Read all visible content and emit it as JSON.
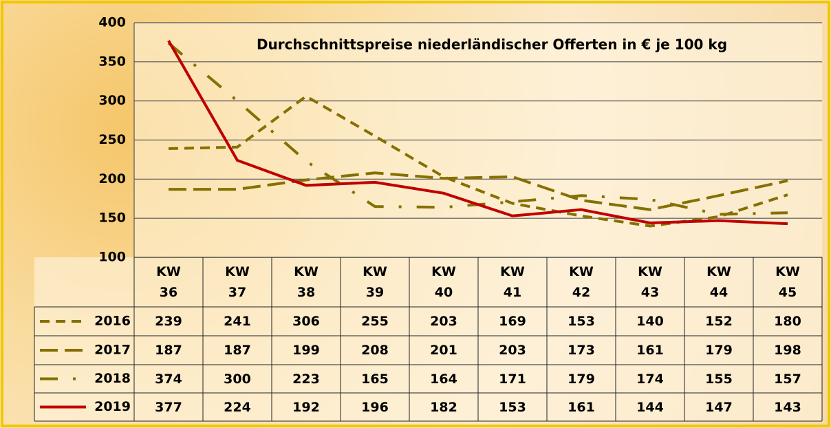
{
  "chart_data": {
    "type": "line",
    "title": "Durchschnittspreise niederländischer Offerten in € je 100 kg",
    "categories": [
      "KW 36",
      "KW 37",
      "KW 38",
      "KW 39",
      "KW 40",
      "KW 41",
      "KW 42",
      "KW 43",
      "KW 44",
      "KW 45"
    ],
    "series": [
      {
        "name": "2016",
        "color": "#857000",
        "dash": "short",
        "values": [
          239,
          241,
          306,
          255,
          203,
          169,
          153,
          140,
          152,
          180
        ]
      },
      {
        "name": "2017",
        "color": "#857000",
        "dash": "long",
        "values": [
          187,
          187,
          199,
          208,
          201,
          203,
          173,
          161,
          179,
          198
        ]
      },
      {
        "name": "2018",
        "color": "#857000",
        "dash": "dashdot",
        "values": [
          374,
          300,
          223,
          165,
          164,
          171,
          179,
          174,
          155,
          157
        ]
      },
      {
        "name": "2019",
        "color": "#c00000",
        "dash": "solid",
        "values": [
          377,
          224,
          192,
          196,
          182,
          153,
          161,
          144,
          147,
          143
        ]
      }
    ],
    "ylim": [
      100,
      400
    ],
    "yticks": [
      100,
      150,
      200,
      250,
      300,
      350,
      400
    ],
    "grid": true,
    "data_table": true
  }
}
